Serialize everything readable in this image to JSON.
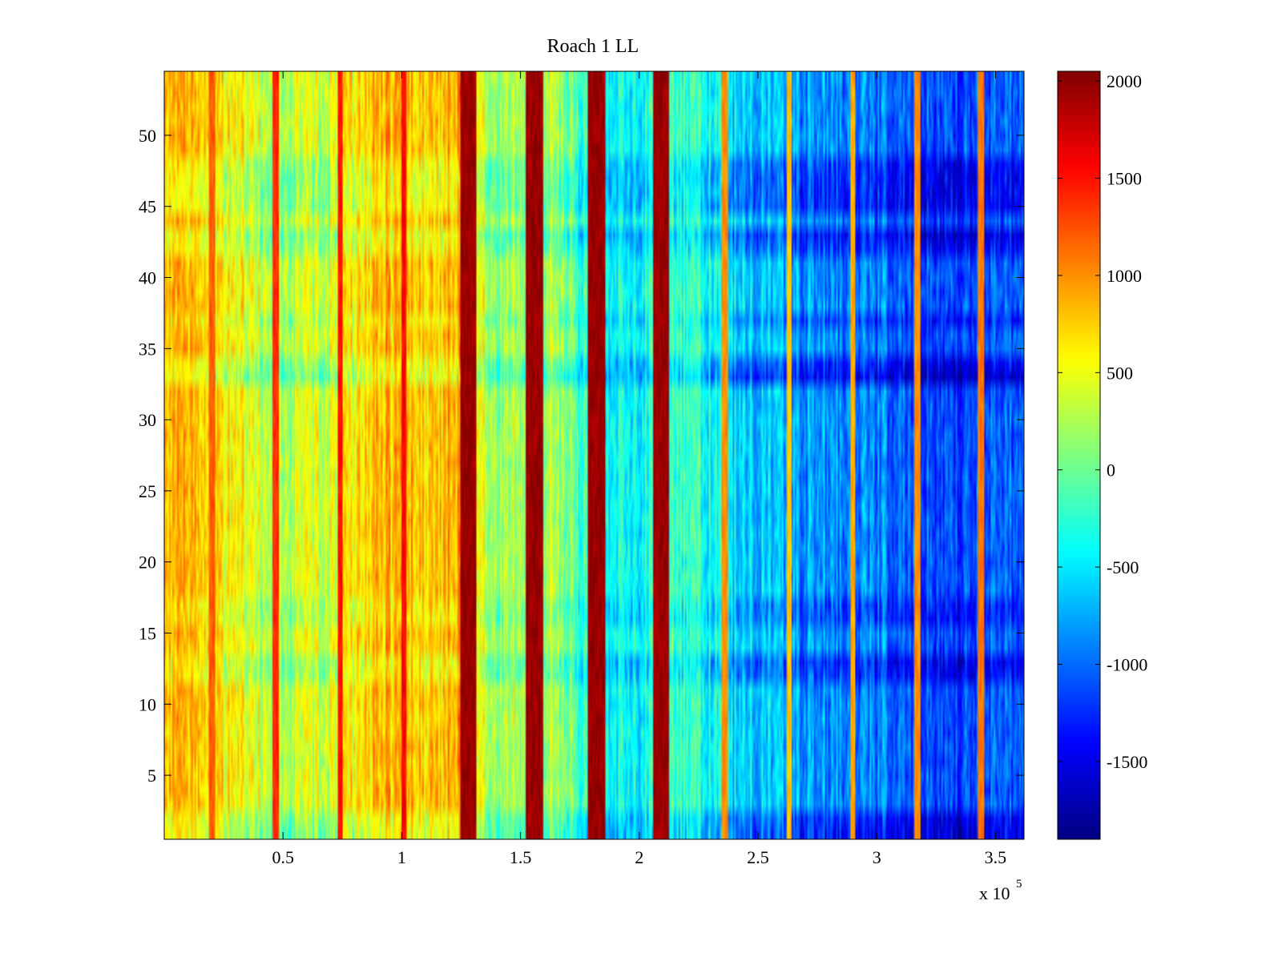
{
  "chart_data": {
    "type": "heatmap",
    "title": "Roach 1 LL",
    "xlabel": "",
    "ylabel": "",
    "x_multiplier_label": "x 10",
    "x_multiplier_exponent": "5",
    "xlim": [
      0,
      3.62
    ],
    "ylim": [
      0.5,
      54.5
    ],
    "x_ticks": [
      0.5,
      1,
      1.5,
      2,
      2.5,
      3,
      3.5
    ],
    "x_tick_labels": [
      "0.5",
      "1",
      "1.5",
      "2",
      "2.5",
      "3",
      "3.5"
    ],
    "y_ticks": [
      5,
      10,
      15,
      20,
      25,
      30,
      35,
      40,
      45,
      50
    ],
    "y_tick_labels": [
      "5",
      "10",
      "15",
      "20",
      "25",
      "30",
      "35",
      "40",
      "45",
      "50"
    ],
    "rows": 54,
    "colorbar": {
      "colormap": "jet",
      "range": [
        -1900,
        2050
      ],
      "ticks": [
        -1500,
        -1000,
        -500,
        0,
        500,
        1000,
        1500,
        2000
      ],
      "tick_labels": [
        "-1500",
        "-1000",
        "-500",
        "0",
        "500",
        "1000",
        "1500",
        "2000"
      ]
    },
    "column_trend_profile": [
      {
        "x": 0.0,
        "value": 850
      },
      {
        "x": 0.25,
        "value": 650
      },
      {
        "x": 0.5,
        "value": 280
      },
      {
        "x": 0.7,
        "value": 420
      },
      {
        "x": 0.85,
        "value": 750
      },
      {
        "x": 1.0,
        "value": 900
      },
      {
        "x": 1.15,
        "value": 700
      },
      {
        "x": 1.25,
        "value": 1000
      },
      {
        "x": 1.4,
        "value": 150
      },
      {
        "x": 1.55,
        "value": 400
      },
      {
        "x": 1.7,
        "value": 50
      },
      {
        "x": 1.85,
        "value": -500
      },
      {
        "x": 2.05,
        "value": -300
      },
      {
        "x": 2.2,
        "value": -200
      },
      {
        "x": 2.4,
        "value": -500
      },
      {
        "x": 2.7,
        "value": -800
      },
      {
        "x": 3.0,
        "value": -900
      },
      {
        "x": 3.25,
        "value": -1100
      },
      {
        "x": 3.62,
        "value": -1000
      }
    ],
    "vertical_stripes": [
      {
        "x": 0.2,
        "value": 1200
      },
      {
        "x": 0.47,
        "value": 1400
      },
      {
        "x": 0.74,
        "value": 1500
      },
      {
        "x": 1.01,
        "value": 1550
      },
      {
        "x": 1.28,
        "value": 1950
      },
      {
        "x": 1.56,
        "value": 1950
      },
      {
        "x": 1.82,
        "value": 1950
      },
      {
        "x": 2.09,
        "value": 1950
      },
      {
        "x": 2.36,
        "value": 1000
      },
      {
        "x": 2.63,
        "value": 800
      },
      {
        "x": 2.9,
        "value": 900
      },
      {
        "x": 3.17,
        "value": 1000
      },
      {
        "x": 3.44,
        "value": 1100
      }
    ],
    "row_offsets": [
      {
        "row": 1,
        "value": -300
      },
      {
        "row": 2,
        "value": -250
      },
      {
        "row": 12,
        "value": -200
      },
      {
        "row": 13,
        "value": -250
      },
      {
        "row": 16,
        "value": -150
      },
      {
        "row": 17,
        "value": -150
      },
      {
        "row": 33,
        "value": -350
      },
      {
        "row": 34,
        "value": -250
      },
      {
        "row": 37,
        "value": -150
      },
      {
        "row": 42,
        "value": -200
      },
      {
        "row": 43,
        "value": -300
      },
      {
        "row": 45,
        "value": -250
      },
      {
        "row": 46,
        "value": -250
      },
      {
        "row": 47,
        "value": -250
      },
      {
        "row": 48,
        "value": -200
      }
    ]
  }
}
